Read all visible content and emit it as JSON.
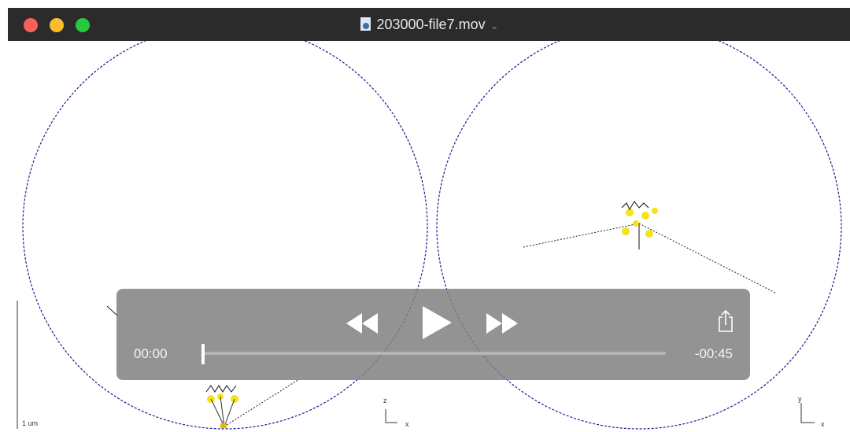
{
  "window": {
    "title": "203000-file7.mov"
  },
  "player": {
    "current_time": "00:00",
    "remaining_time": "-00:45"
  },
  "video": {
    "scale_label": "1 um",
    "left_axis": [
      "z",
      "x"
    ],
    "right_axis": [
      "y",
      "x"
    ]
  }
}
